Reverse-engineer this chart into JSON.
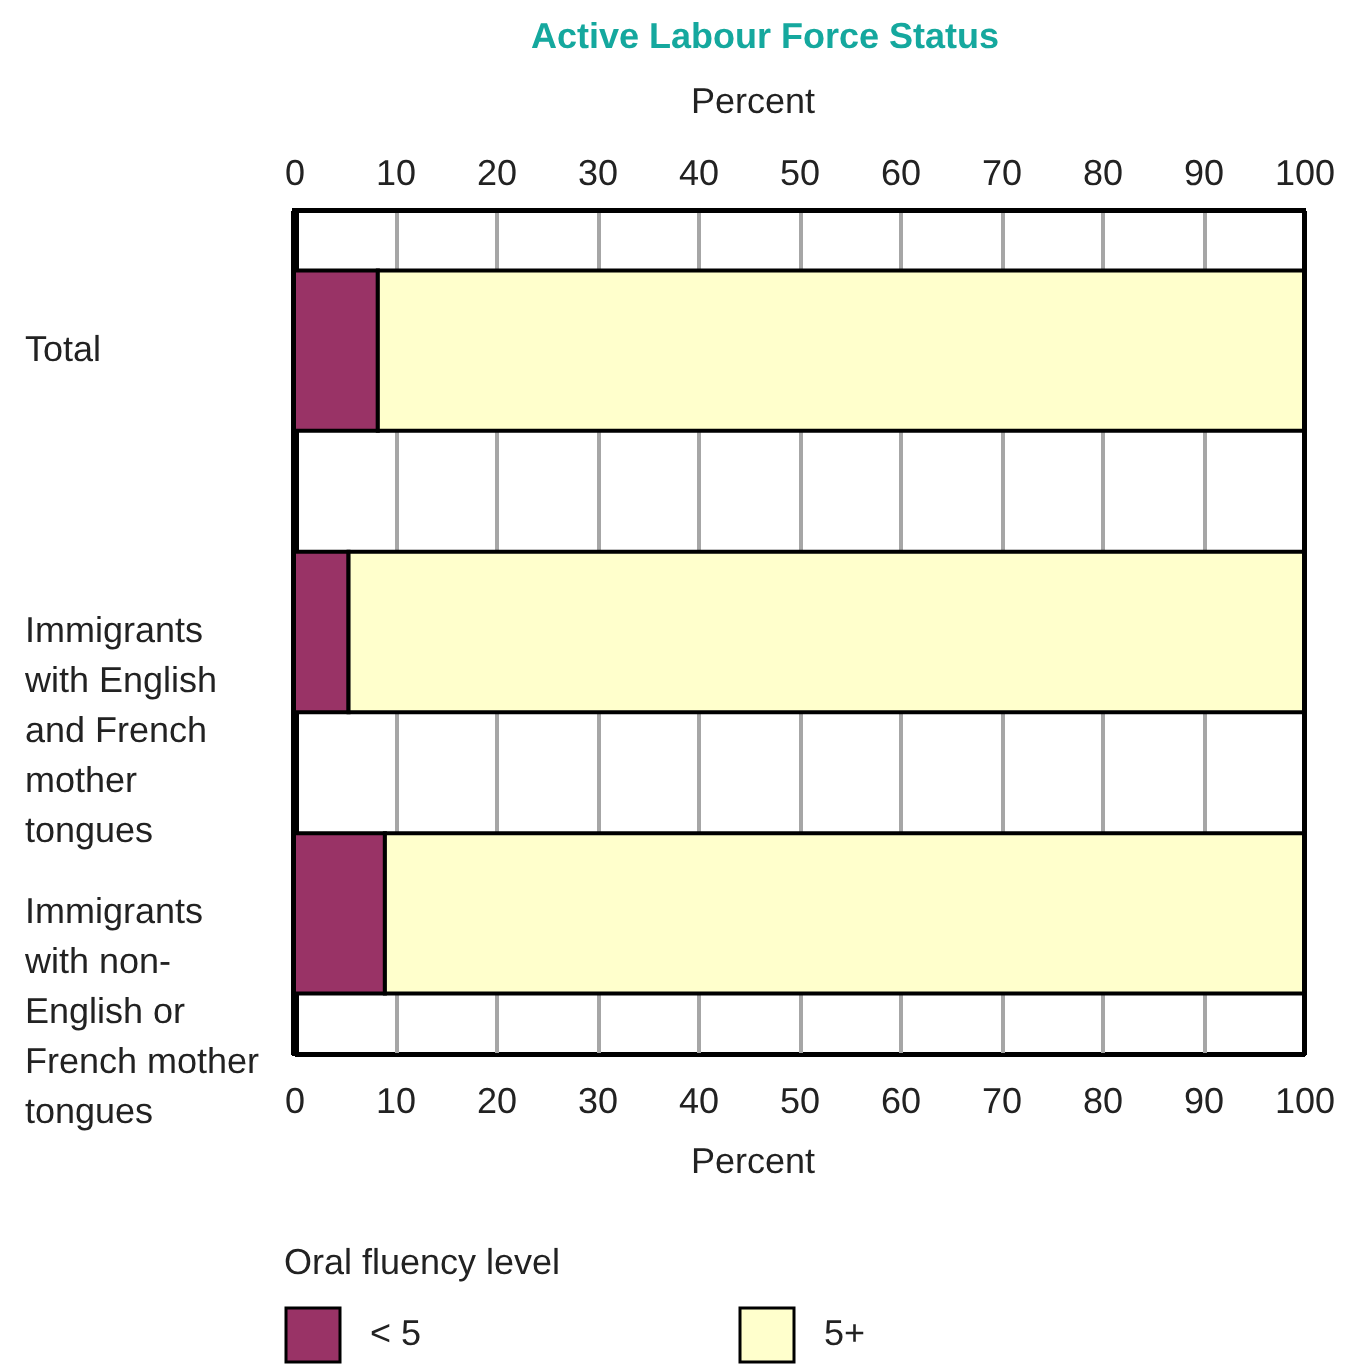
{
  "chart_data": {
    "type": "bar",
    "orientation": "horizontal",
    "stacked": true,
    "title": "Active Labour Force Status",
    "xlabel": "Percent",
    "x2label": "Percent",
    "categories": [
      "Total",
      "Immigrants with English and French mother tongues",
      "Immigrants with non-English or French mother tongues"
    ],
    "series": [
      {
        "name": "< 5",
        "color": "#993366",
        "values": [
          8.3,
          5.4,
          9.0
        ]
      },
      {
        "name": "5+",
        "color": "#ffffcc",
        "values": [
          91.7,
          94.6,
          91.0
        ]
      }
    ],
    "xlim": [
      0,
      100
    ],
    "xticks": [
      0,
      10,
      20,
      30,
      40,
      50,
      60,
      70,
      80,
      90,
      100
    ],
    "x2lim": [
      0,
      100
    ],
    "x2ticks": [
      0,
      10,
      20,
      30,
      40,
      50,
      60,
      70,
      80,
      90,
      100
    ],
    "grid": "x",
    "legend": "bottom",
    "legend_title": "Oral fluency level"
  }
}
